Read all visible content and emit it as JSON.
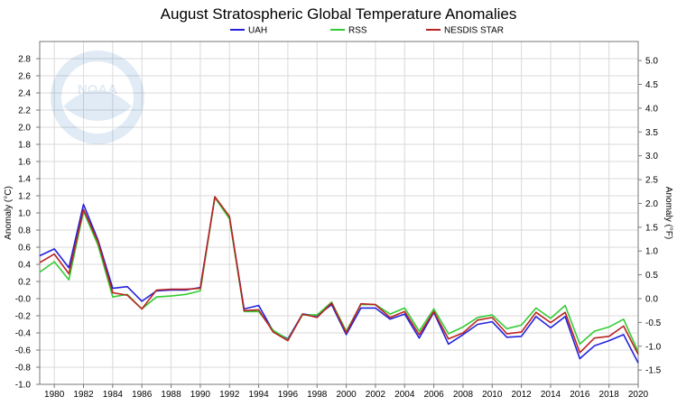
{
  "chart_data": {
    "type": "line",
    "title": "August Stratospheric Global Temperature Anomalies",
    "ylabel_left": "Anomaly (°C)",
    "ylabel_right": "Anomaly (°F)",
    "xlim": [
      1979,
      2020
    ],
    "ylim_left": [
      -1.0,
      3.0
    ],
    "ylim_right": [
      -1.8,
      5.4
    ],
    "x_ticks": [
      1980,
      1982,
      1984,
      1986,
      1988,
      1990,
      1992,
      1994,
      1996,
      1998,
      2000,
      2002,
      2004,
      2006,
      2008,
      2010,
      2012,
      2014,
      2016,
      2018,
      2020
    ],
    "y_ticks_left": [
      "-1.0",
      "-0.8",
      "-0.6",
      "-0.4",
      "-0.2",
      "-0.0",
      "0.2",
      "0.4",
      "0.6",
      "0.8",
      "1.0",
      "1.2",
      "1.4",
      "1.6",
      "1.8",
      "2.0",
      "2.2",
      "2.4",
      "2.6",
      "2.8"
    ],
    "y_ticks_right": [
      "-1.5",
      "-1.0",
      "-0.5",
      "0.0",
      "0.5",
      "1.0",
      "1.5",
      "2.0",
      "2.5",
      "3.0",
      "3.5",
      "4.0",
      "4.5",
      "5.0"
    ],
    "grid": true,
    "legend_placement": "top-center",
    "watermark": "NOAA",
    "x": [
      1979,
      1980,
      1981,
      1982,
      1983,
      1984,
      1985,
      1986,
      1987,
      1988,
      1989,
      1990,
      1991,
      1992,
      1993,
      1994,
      1995,
      1996,
      1997,
      1998,
      1999,
      2000,
      2001,
      2002,
      2003,
      2004,
      2005,
      2006,
      2007,
      2008,
      2009,
      2010,
      2011,
      2012,
      2013,
      2014,
      2015,
      2016,
      2017,
      2018,
      2019,
      2020
    ],
    "series": [
      {
        "name": "UAH",
        "color": "#2222dd",
        "values": [
          0.5,
          0.58,
          0.36,
          1.1,
          0.68,
          0.12,
          0.14,
          -0.03,
          0.09,
          0.1,
          0.1,
          0.13,
          1.18,
          0.95,
          -0.12,
          -0.08,
          -0.38,
          -0.47,
          -0.18,
          -0.2,
          -0.07,
          -0.42,
          -0.11,
          -0.11,
          -0.24,
          -0.18,
          -0.46,
          -0.16,
          -0.53,
          -0.42,
          -0.3,
          -0.27,
          -0.45,
          -0.44,
          -0.21,
          -0.34,
          -0.21,
          -0.7,
          -0.55,
          -0.49,
          -0.42,
          -0.75
        ]
      },
      {
        "name": "RSS",
        "color": "#33cc33",
        "values": [
          0.31,
          0.43,
          0.22,
          1.02,
          0.62,
          0.02,
          0.05,
          -0.12,
          0.02,
          0.03,
          0.05,
          0.09,
          1.18,
          0.93,
          -0.15,
          -0.15,
          -0.37,
          -0.48,
          -0.19,
          -0.19,
          -0.04,
          -0.38,
          -0.07,
          -0.07,
          -0.18,
          -0.11,
          -0.38,
          -0.12,
          -0.41,
          -0.33,
          -0.22,
          -0.19,
          -0.35,
          -0.31,
          -0.11,
          -0.23,
          -0.08,
          -0.53,
          -0.38,
          -0.33,
          -0.24,
          -0.62
        ]
      },
      {
        "name": "NESDIS STAR",
        "color": "#bb2222",
        "values": [
          0.42,
          0.52,
          0.29,
          1.04,
          0.66,
          0.07,
          0.04,
          -0.12,
          0.1,
          0.11,
          0.11,
          0.12,
          1.19,
          0.96,
          -0.14,
          -0.13,
          -0.39,
          -0.49,
          -0.18,
          -0.22,
          -0.05,
          -0.4,
          -0.06,
          -0.07,
          -0.22,
          -0.15,
          -0.42,
          -0.15,
          -0.47,
          -0.4,
          -0.25,
          -0.22,
          -0.41,
          -0.39,
          -0.16,
          -0.28,
          -0.16,
          -0.63,
          -0.46,
          -0.44,
          -0.32,
          -0.65
        ]
      }
    ]
  }
}
